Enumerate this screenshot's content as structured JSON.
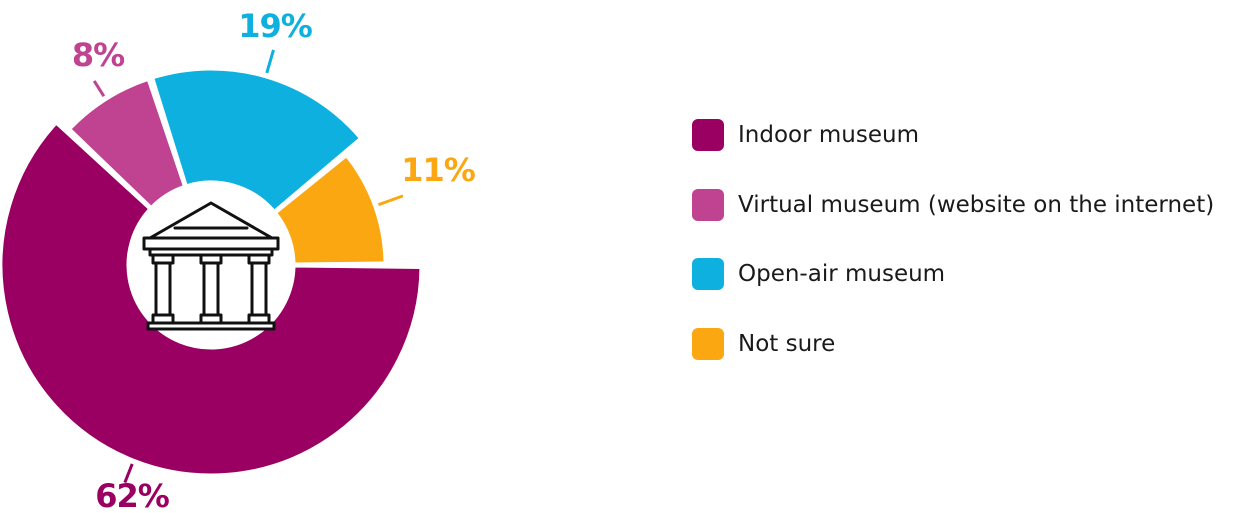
{
  "chart_data": {
    "type": "pie",
    "title": "",
    "center_icon": "museum-building-icon",
    "series": [
      {
        "name": "Indoor museum",
        "value": 62,
        "label": "62%",
        "color": "#990062"
      },
      {
        "name": "Virtual museum (website on the internet)",
        "value": 8,
        "label": "8%",
        "color": "#BF4391"
      },
      {
        "name": "Open-air museum",
        "value": 19,
        "label": "19%",
        "color": "#0DB0DE"
      },
      {
        "name": "Not sure",
        "value": 11,
        "label": "11%",
        "color": "#FBA712"
      }
    ],
    "legend_position": "right"
  }
}
